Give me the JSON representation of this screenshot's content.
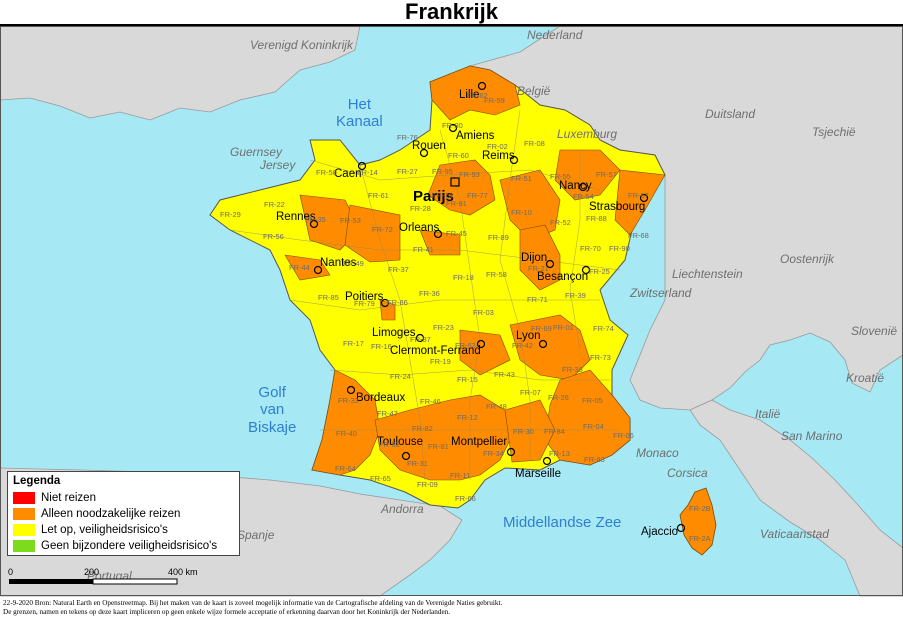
{
  "title": "Frankrijk",
  "colors": {
    "sea": "#a6e8f4",
    "land_neighbor": "#d9d9d9",
    "red": "#ff0000",
    "orange": "#ff8c00",
    "yellow": "#ffff00",
    "green": "#7cdb1d"
  },
  "countries": [
    "Verenigd Koninkrijk",
    "Nederland",
    "België",
    "Luxemburg",
    "Duitsland",
    "Tsjechië",
    "Liechtenstein",
    "Oostenrijk",
    "Zwitserland",
    "Slovenië",
    "Kroatië",
    "Italië",
    "San Marino",
    "Monaco",
    "Vaticaanstad",
    "Andorra",
    "Spanje",
    "Portugal",
    "Guernsey",
    "Jersey",
    "Corsica"
  ],
  "seas": {
    "channel": [
      "Het",
      "Kanaal"
    ],
    "biscay": [
      "Golf",
      "van",
      "Biskaje"
    ],
    "med": "Middellandse Zee"
  },
  "cities": [
    "Lille",
    "Amiens",
    "Rouen",
    "Reims",
    "Caen",
    "Nancy",
    "Strasbourg",
    "Rennes",
    "Orleans",
    "Nantes",
    "Dijon",
    "Besançon",
    "Poitiers",
    "Limoges",
    "Lyon",
    "Clermont-Ferrand",
    "Bordeaux",
    "Toulouse",
    "Montpellier",
    "Marseille",
    "Ajaccio"
  ],
  "capital": "Parijs",
  "departments": [
    "FR-62",
    "FR-59",
    "FR-80",
    "FR-02",
    "FR-60",
    "FR-76",
    "FR-50",
    "FR-14",
    "FR-27",
    "FR-08",
    "FR-55",
    "FR-57",
    "FR-67",
    "FR-54",
    "FR-88",
    "FR-68",
    "FR-51",
    "FR-10",
    "FR-52",
    "FR-77",
    "FR-78",
    "FR-91",
    "FR-95",
    "FR-93",
    "FR-28",
    "FR-61",
    "FR-22",
    "FR-29",
    "FR-56",
    "FR-35",
    "FR-53",
    "FR-72",
    "FR-45",
    "FR-89",
    "FR-21",
    "FR-70",
    "FR-90",
    "FR-25",
    "FR-39",
    "FR-71",
    "FR-58",
    "FR-18",
    "FR-41",
    "FR-37",
    "FR-44",
    "FR-49",
    "FR-85",
    "FR-79",
    "FR-86",
    "FR-36",
    "FR-17",
    "FR-16",
    "FR-87",
    "FR-23",
    "FR-03",
    "FR-63",
    "FR-42",
    "FR-69",
    "FR-01",
    "FR-74",
    "FR-73",
    "FR-38",
    "FR-26",
    "FR-07",
    "FR-43",
    "FR-15",
    "FR-19",
    "FR-24",
    "FR-33",
    "FR-47",
    "FR-46",
    "FR-12",
    "FR-48",
    "FR-30",
    "FR-84",
    "FR-05",
    "FR-04",
    "FR-06",
    "FR-83",
    "FR-13",
    "FR-34",
    "FR-81",
    "FR-82",
    "FR-32",
    "FR-40",
    "FR-64",
    "FR-65",
    "FR-31",
    "FR-09",
    "FR-11",
    "FR-66",
    "FR-2B",
    "FR-2A"
  ],
  "legend": {
    "title": "Legenda",
    "items": [
      {
        "label": "Niet reizen",
        "color": "#ff0000"
      },
      {
        "label": "Alleen noodzakelijke reizen",
        "color": "#ff8c00"
      },
      {
        "label": "Let op, veiligheidsrisico's",
        "color": "#ffff00"
      },
      {
        "label": "Geen bijzondere veiligheidsrisico's",
        "color": "#7cdb1d"
      }
    ]
  },
  "scale": {
    "ticks": [
      "0",
      "200",
      "400 km"
    ]
  },
  "footer": [
    "22-9-2020 Bron: Natural Earth en Openstreetmap. Bij het maken van de kaart is zoveel mogelijk informatie van de Cartografische afdeling van de Verenigde Naties gebruikt.",
    "De grenzen, namen en tekens op deze kaart impliceren op geen enkele wijze formele acceptatie of erkenning daarvan door het Koninkrijk der Nederlanden."
  ]
}
